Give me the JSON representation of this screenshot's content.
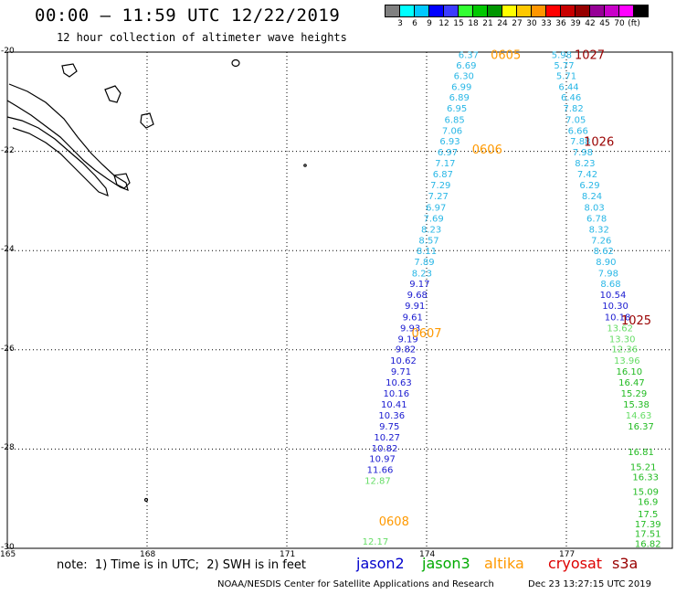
{
  "header": {
    "title": "00:00 – 11:59 UTC 12/22/2019",
    "subtitle": "12 hour collection of altimeter wave heights"
  },
  "legend": {
    "colors": [
      "#808080",
      "#00ffff",
      "#00c8ff",
      "#0000ff",
      "#3c3cff",
      "#32ff32",
      "#00c800",
      "#009600",
      "#ffff00",
      "#ffc800",
      "#ff9600",
      "#ff0000",
      "#c80000",
      "#960000",
      "#960096",
      "#c800c8",
      "#ff00ff",
      "#000000"
    ],
    "labels": [
      "3",
      "6",
      "9",
      "12",
      "15",
      "18",
      "21",
      "24",
      "27",
      "30",
      "33",
      "36",
      "39",
      "42",
      "45",
      "70",
      "(ft)"
    ]
  },
  "axes": {
    "lon_labels": [
      "165",
      "168",
      "171",
      "174",
      "177"
    ],
    "lat_labels": [
      "-20",
      "-22",
      "-24",
      "-26",
      "-28",
      "-30"
    ]
  },
  "footer": {
    "note": "note:  1) Time is in UTC;  2) SWH is in feet",
    "satellites": [
      {
        "name": "jason2",
        "color": "#0000cc"
      },
      {
        "name": "jason3",
        "color": "#00aa00"
      },
      {
        "name": "altika",
        "color": "#ff9900"
      },
      {
        "name": "cryosat",
        "color": "#dd0000"
      },
      {
        "name": "s3a",
        "color": "#990000"
      }
    ],
    "credit": "NOAA/NESDIS Center for Satellite Applications and Research",
    "timestamp": "Dec 23 13:27:15 UTC 2019"
  },
  "chart_data": {
    "type": "scatter",
    "title": "00:00 – 11:59 UTC 12/22/2019",
    "subtitle": "12 hour collection of altimeter wave heights",
    "xlim": [
      165,
      178.5
    ],
    "ylim": [
      -30,
      -20
    ],
    "track_left": {
      "lon": [
        174.9,
        174.85,
        174.8,
        174.75,
        174.7,
        174.65,
        174.6,
        174.55,
        174.5,
        174.45,
        174.4,
        174.35,
        174.3,
        174.25,
        174.2,
        174.15,
        174.1,
        174.05,
        174.0,
        173.95,
        173.9,
        173.85,
        173.8,
        173.75,
        173.7,
        173.65,
        173.6,
        173.55,
        173.5,
        173.45,
        173.4,
        173.35,
        173.3,
        173.25,
        173.2,
        173.15,
        173.1,
        173.05,
        173.0,
        172.95
      ],
      "lat": [
        -20.05,
        -20.26,
        -20.47,
        -20.69,
        -20.9,
        -21.12,
        -21.35,
        -21.57,
        -21.79,
        -22.01,
        -22.23,
        -22.45,
        -22.67,
        -22.89,
        -23.12,
        -23.34,
        -23.56,
        -23.78,
        -24.0,
        -24.22,
        -24.45,
        -24.66,
        -24.88,
        -25.1,
        -25.33,
        -25.55,
        -25.77,
        -25.98,
        -26.21,
        -26.43,
        -26.65,
        -26.87,
        -27.09,
        -27.31,
        -27.53,
        -27.75,
        -27.97,
        -28.19,
        -28.41,
        -28.63
      ],
      "swh": [
        "6.37",
        "6.69",
        "6.30",
        "6.99",
        "6.89",
        "6.95",
        "6.85",
        "7.06",
        "6.93",
        "6.97",
        "7.17",
        "6.87",
        "7.29",
        "7.27",
        "6.97",
        "7.69",
        "8.23",
        "8.57",
        "8.11",
        "7.89",
        "8.23",
        "9.17",
        "9.68",
        "9.91",
        "9.61",
        "9.93",
        "9.19",
        "9.82",
        "10.62",
        "9.71",
        "10.63",
        "10.16",
        "10.41",
        "10.36",
        "9.75",
        "10.27",
        "10.82",
        "10.97",
        "11.66",
        "12.87"
      ]
    },
    "track_left_extra": [
      {
        "lon": 172.9,
        "lat": -29.85,
        "swh": "12.17"
      }
    ],
    "track_right": {
      "lon": [
        176.9,
        176.95,
        177.0,
        177.05,
        177.1,
        177.15,
        177.2,
        177.25,
        177.3,
        177.35,
        177.4,
        177.45,
        177.5,
        177.55,
        177.6,
        177.65,
        177.7,
        177.75,
        177.8,
        177.85,
        177.9,
        177.95,
        178.0,
        178.05,
        178.1,
        178.15,
        178.2,
        178.25,
        178.3,
        178.35,
        178.4,
        178.45,
        178.5,
        178.55,
        178.6
      ],
      "lat": [
        -20.05,
        -20.26,
        -20.47,
        -20.69,
        -20.9,
        -21.12,
        -21.35,
        -21.57,
        -21.79,
        -22.01,
        -22.23,
        -22.45,
        -22.67,
        -22.89,
        -23.12,
        -23.34,
        -23.56,
        -23.78,
        -24.0,
        -24.22,
        -24.45,
        -24.66,
        -24.88,
        -25.1,
        -25.33,
        -25.55,
        -25.77,
        -25.98,
        -26.21,
        -26.43,
        -26.65,
        -26.87,
        -27.09,
        -27.31,
        -27.53
      ],
      "swh": [
        "5.98",
        "5.77",
        "5.71",
        "6.44",
        "6.46",
        "7.82",
        "7.05",
        "6.66",
        "7.88",
        "7.98",
        "8.23",
        "7.42",
        "6.29",
        "8.24",
        "8.03",
        "6.78",
        "8.32",
        "7.26",
        "8.62",
        "8.90",
        "7.98",
        "8.68",
        "10.54",
        "10.30",
        "10.18",
        "13.62",
        "13.30",
        "12.36",
        "13.96",
        "16.10",
        "16.47",
        "15.29",
        "15.38",
        "14.63",
        "16.37"
      ]
    },
    "track_right_extra": [
      {
        "lon": 178.6,
        "lat": -28.05,
        "swh": "16.81"
      },
      {
        "lon": 178.65,
        "lat": -28.35,
        "swh": "15.21"
      },
      {
        "lon": 178.7,
        "lat": -28.55,
        "swh": "16.33"
      },
      {
        "lon": 178.7,
        "lat": -28.85,
        "swh": "15.09"
      },
      {
        "lon": 178.75,
        "lat": -29.05,
        "swh": "16.9"
      },
      {
        "lon": 178.75,
        "lat": -29.3,
        "swh": "17.5"
      },
      {
        "lon": 178.75,
        "lat": -29.5,
        "swh": "17.39"
      },
      {
        "lon": 178.75,
        "lat": -29.7,
        "swh": "17.51"
      },
      {
        "lon": 178.75,
        "lat": -29.9,
        "swh": "16.82"
      }
    ],
    "times": [
      {
        "text": "0605",
        "lon": 175.7,
        "lat": -20.05,
        "color": "#ff9900"
      },
      {
        "text": "0606",
        "lon": 175.3,
        "lat": -21.95,
        "color": "#ff9900"
      },
      {
        "text": "0607",
        "lon": 174.0,
        "lat": -25.65,
        "color": "#ff9900"
      },
      {
        "text": "0608",
        "lon": 173.3,
        "lat": -29.45,
        "color": "#ff9900"
      },
      {
        "text": "1027",
        "lon": 177.5,
        "lat": -20.05,
        "color": "#990000"
      },
      {
        "text": "1026",
        "lon": 177.7,
        "lat": -21.8,
        "color": "#990000"
      },
      {
        "text": "1025",
        "lon": 178.5,
        "lat": -25.4,
        "color": "#990000"
      }
    ]
  }
}
